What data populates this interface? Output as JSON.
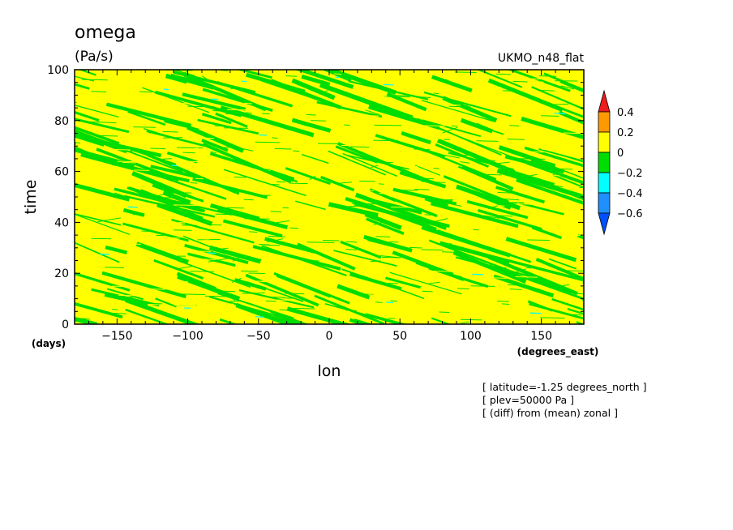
{
  "chart_data": {
    "type": "heatmap",
    "title": "omega",
    "units": "(Pa/s)",
    "model_label": "UKMO_n48_flat",
    "xlabel": "lon",
    "x_units": "(degrees_east)",
    "ylabel": "time",
    "y_units": "(days)",
    "xlim": [
      -180,
      180
    ],
    "ylim": [
      0,
      100
    ],
    "x_ticks": [
      -150,
      -100,
      -50,
      0,
      50,
      100,
      150
    ],
    "y_ticks": [
      0,
      20,
      40,
      60,
      80,
      100
    ],
    "colorbar": {
      "levels": [
        "0.4",
        "0.2",
        "0",
        "-0.2",
        "-0.4",
        "-0.6"
      ],
      "colors": [
        "#ee1c1c",
        "#ff9900",
        "#ffff00",
        "#00dd00",
        "#00ffff",
        "#1e90ff",
        "#0050ff"
      ]
    },
    "band_colors": {
      "positive": "#ffff00",
      "negative": "#00dd00",
      "strong_negative": "#00ffff"
    },
    "notes": [
      "[ latitude=-1.25 degrees_north ]",
      "[ plev=50000 Pa ]",
      "[ (diff) from (mean) zonal ]"
    ]
  }
}
